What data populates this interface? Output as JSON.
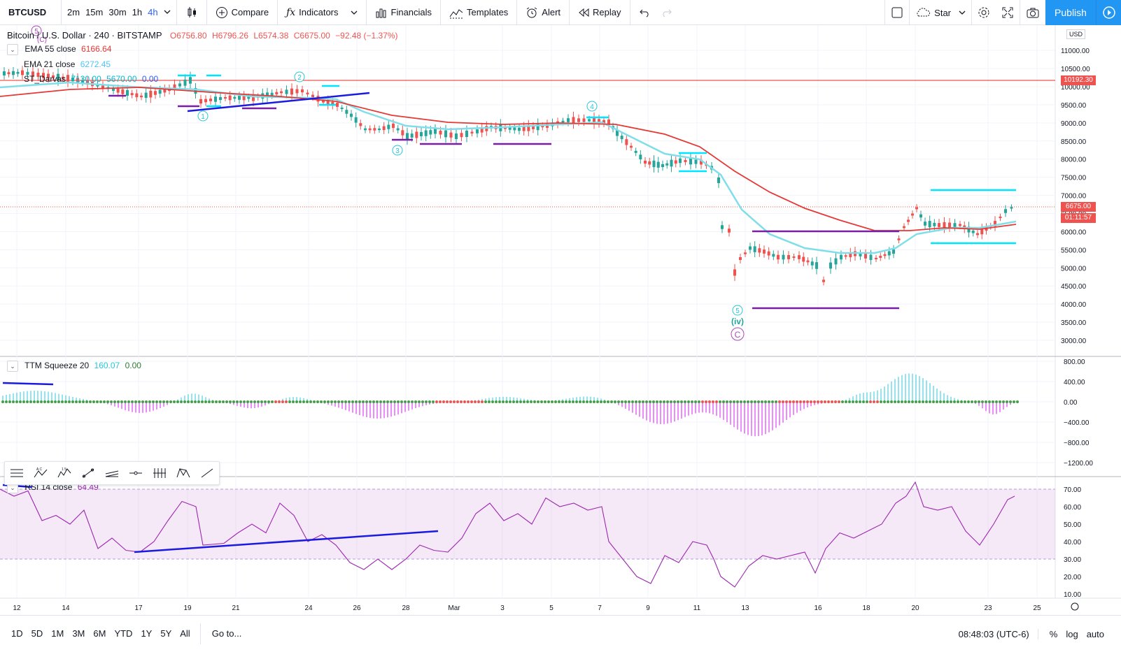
{
  "toolbar": {
    "symbol": "BTCUSD",
    "intervals": [
      "2m",
      "15m",
      "30m",
      "1h",
      "4h"
    ],
    "active_interval": "4h",
    "compare": "Compare",
    "indicators": "Indicators",
    "financials": "Financials",
    "templates": "Templates",
    "alert": "Alert",
    "replay": "Replay",
    "star": "Star",
    "publish": "Publish"
  },
  "legend": {
    "title": "Bitcoin / U.S. Dollar · 240 · BITSTAMP",
    "o": "O6756.80",
    "h": "H6796.26",
    "l": "L6574.38",
    "c": "C6675.00",
    "chg": "−92.48 (−1.37%)",
    "ema55_label": "EMA 55 close",
    "ema55_value": "6166.64",
    "ema21_label": "EMA 21 close",
    "ema21_value": "6272.45",
    "darvas_label": "ST_Darvas",
    "darvas_v1": "7130.00",
    "darvas_v2": "5670.00",
    "darvas_v3": "0.00",
    "ttm_label": "TTM Squeeze 20",
    "ttm_v1": "160.07",
    "ttm_v2": "0.00",
    "rsi_label": "RSI 14 close",
    "rsi_value": "64.49"
  },
  "price_axis": {
    "currency": "USD",
    "ticks": [
      "11000.00",
      "10500.00",
      "10000.00",
      "9500.00",
      "9000.00",
      "8500.00",
      "8000.00",
      "7500.00",
      "7000.00",
      "6500.00",
      "6000.00",
      "5500.00",
      "5000.00",
      "4500.00",
      "4000.00",
      "3500.00",
      "3000.00"
    ],
    "tag_high": "10192.30",
    "tag_last": "6675.00",
    "tag_timer": "01:11:57"
  },
  "ttm_axis": {
    "ticks": [
      "800.00",
      "400.00",
      "0.00",
      "−400.00",
      "−800.00",
      "−1200.00"
    ]
  },
  "rsi_axis": {
    "ticks": [
      "70.00",
      "60.00",
      "50.00",
      "40.00",
      "30.00",
      "20.00",
      "10.00"
    ]
  },
  "time_axis": {
    "ticks": [
      "12",
      "14",
      "17",
      "19",
      "21",
      "24",
      "26",
      "28",
      "Mar",
      "3",
      "5",
      "7",
      "9",
      "11",
      "13",
      "16",
      "18",
      "20",
      "23",
      "25"
    ]
  },
  "waves": {
    "w1": "1",
    "w2": "2",
    "w3": "3",
    "w4": "4",
    "w5": "5",
    "iv": "(iv)",
    "c": "C",
    "topc": "(C)",
    "top5": "5"
  },
  "bottombar": {
    "ranges": [
      "1D",
      "5D",
      "1M",
      "3M",
      "6M",
      "YTD",
      "1Y",
      "5Y",
      "All"
    ],
    "goto": "Go to...",
    "clock": "08:48:03 (UTC-6)",
    "pct": "%",
    "log": "log",
    "auto": "auto"
  },
  "colors": {
    "up": "#26a69a",
    "down": "#ef5350",
    "ema55": "#e53935",
    "ema21": "#80deea",
    "darvas_top": "#00e5ff",
    "darvas_bottom": "#7b1fa2",
    "trendline": "#1a1ae0",
    "accent": "#2962ff",
    "rsi": "#9c27b0"
  }
}
